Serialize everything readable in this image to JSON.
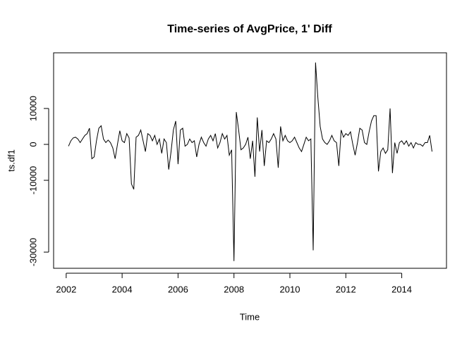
{
  "chart_data": {
    "type": "line",
    "title": "Time-series of AvgPrice, 1' Diff",
    "x_label": "Time",
    "y_label": "ts.df1",
    "x": [
      2002.083,
      2002.167,
      2002.25,
      2002.333,
      2002.417,
      2002.5,
      2002.583,
      2002.667,
      2002.75,
      2002.833,
      2002.917,
      2003,
      2003.083,
      2003.167,
      2003.25,
      2003.333,
      2003.417,
      2003.5,
      2003.583,
      2003.667,
      2003.75,
      2003.833,
      2003.917,
      2004,
      2004.083,
      2004.167,
      2004.25,
      2004.333,
      2004.417,
      2004.5,
      2004.583,
      2004.667,
      2004.75,
      2004.833,
      2004.917,
      2005,
      2005.083,
      2005.167,
      2005.25,
      2005.333,
      2005.417,
      2005.5,
      2005.583,
      2005.667,
      2005.75,
      2005.833,
      2005.917,
      2006,
      2006.083,
      2006.167,
      2006.25,
      2006.333,
      2006.417,
      2006.5,
      2006.583,
      2006.667,
      2006.75,
      2006.833,
      2006.917,
      2007,
      2007.083,
      2007.167,
      2007.25,
      2007.333,
      2007.417,
      2007.5,
      2007.583,
      2007.667,
      2007.75,
      2007.833,
      2007.917,
      2008,
      2008.083,
      2008.167,
      2008.25,
      2008.333,
      2008.417,
      2008.5,
      2008.583,
      2008.667,
      2008.75,
      2008.833,
      2008.917,
      2009,
      2009.083,
      2009.167,
      2009.25,
      2009.333,
      2009.417,
      2009.5,
      2009.583,
      2009.667,
      2009.75,
      2009.833,
      2009.917,
      2010,
      2010.083,
      2010.167,
      2010.25,
      2010.333,
      2010.417,
      2010.5,
      2010.583,
      2010.667,
      2010.75,
      2010.833,
      2010.917,
      2011,
      2011.083,
      2011.167,
      2011.25,
      2011.333,
      2011.417,
      2011.5,
      2011.583,
      2011.667,
      2011.75,
      2011.833,
      2011.917,
      2012,
      2012.083,
      2012.167,
      2012.25,
      2012.333,
      2012.417,
      2012.5,
      2012.583,
      2012.667,
      2012.75,
      2012.833,
      2012.917,
      2013,
      2013.083,
      2013.167,
      2013.25,
      2013.333,
      2013.417,
      2013.5,
      2013.583,
      2013.667,
      2013.75,
      2013.833,
      2013.917,
      2014,
      2014.083,
      2014.167,
      2014.25,
      2014.333,
      2014.417,
      2014.5,
      2014.583,
      2014.667,
      2014.75,
      2014.833,
      2014.917,
      2015,
      2015.083
    ],
    "series": [
      {
        "color": "#000000",
        "values": [
          -500,
          1000,
          1800,
          2000,
          1500,
          500,
          1500,
          2500,
          3000,
          4500,
          -4000,
          -3500,
          1000,
          4500,
          5200,
          1500,
          500,
          1200,
          500,
          -1000,
          -4000,
          0,
          3800,
          1000,
          500,
          3000,
          1800,
          -11000,
          -12500,
          2000,
          2500,
          4000,
          1000,
          -2000,
          3000,
          2500,
          1000,
          2500,
          0,
          1500,
          -2500,
          1500,
          500,
          -7000,
          -2000,
          4000,
          6500,
          -5500,
          4000,
          4500,
          -500,
          0,
          1500,
          500,
          1000,
          -3500,
          0,
          2000,
          500,
          -500,
          1500,
          2500,
          1000,
          3000,
          -1000,
          500,
          3000,
          1500,
          2500,
          -3000,
          -1500,
          -32500,
          9000,
          4000,
          -1500,
          -1000,
          0,
          2000,
          -4000,
          1000,
          -9000,
          7500,
          -2000,
          4000,
          -6000,
          1000,
          500,
          1500,
          3000,
          1500,
          -6500,
          5000,
          1000,
          2500,
          1000,
          500,
          1000,
          2000,
          500,
          -1000,
          -2000,
          0,
          2000,
          1000,
          1500,
          -29500,
          22800,
          13000,
          5000,
          1500,
          500,
          0,
          1000,
          2500,
          1000,
          500,
          -6000,
          4000,
          2000,
          3000,
          2500,
          3500,
          0,
          -3000,
          500,
          4500,
          4000,
          500,
          0,
          3500,
          6500,
          8000,
          8000,
          -7500,
          -2000,
          -1000,
          -2500,
          -1500,
          10000,
          -8000,
          500,
          -2500,
          500,
          1000,
          0,
          1000,
          -500,
          500,
          -1000,
          500,
          0,
          0,
          -500,
          500,
          500,
          2500,
          -2000
        ]
      }
    ],
    "xlim": [
      2001.55,
      2015.6
    ],
    "xticks": [
      2002,
      2004,
      2006,
      2008,
      2010,
      2012,
      2014
    ],
    "ylim": [
      -34500,
      25500
    ],
    "yticks": [
      -30000,
      -10000,
      0,
      10000
    ]
  }
}
